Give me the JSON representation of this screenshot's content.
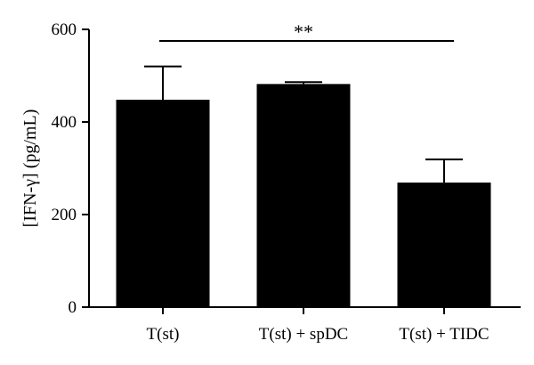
{
  "chart_data": {
    "type": "bar",
    "title": "",
    "xlabel": "",
    "ylabel": "[IFN-γ] (pg/mL)",
    "ylim": [
      0,
      600
    ],
    "yticks": [
      0,
      200,
      400,
      600
    ],
    "categories": [
      "T(st)",
      "T(st) + spDC",
      "T(st) + TIDC"
    ],
    "values": [
      448,
      482,
      269
    ],
    "error_upper": [
      72,
      4,
      50
    ],
    "color": "#000000",
    "grid": false,
    "significance": {
      "label": "**",
      "from": "T(st)",
      "to": "T(st) + TIDC",
      "y": 575
    }
  }
}
